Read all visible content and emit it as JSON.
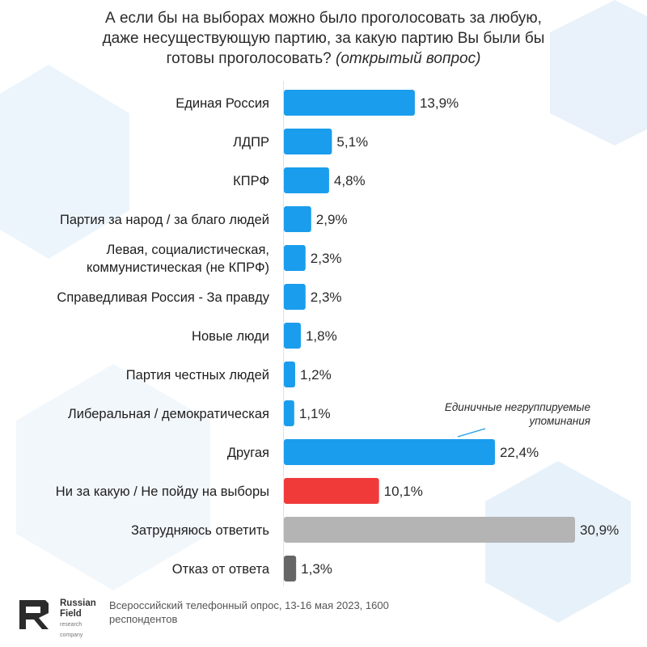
{
  "title": {
    "line1": "А если бы на выборах можно было проголосовать за любую,",
    "line2": "даже несуществующую партию, за какую партию Вы были бы",
    "line3_main": "готовы проголосовать?",
    "line3_italic": "(открытый вопрос)"
  },
  "annotation": {
    "line1": "Единичные негруппируемые",
    "line2": "упоминания"
  },
  "footer": {
    "logo_line1": "Russian",
    "logo_line2": "Field",
    "logo_line3": "research company",
    "note": "Всероссийский телефонный опрос, 13-16 мая 2023, 1600 респондентов"
  },
  "colors": {
    "primary_bar": "#1a9ded",
    "red_bar": "#f03a3a",
    "gray_bar": "#b4b4b4",
    "dark_bar": "#666666",
    "background_shapes": "#e7f1fa"
  },
  "chart_data": {
    "type": "bar",
    "orientation": "horizontal",
    "categories": [
      "Единая Россия",
      "ЛДПР",
      "КПРФ",
      "Партия за народ / за благо людей",
      "Левая, социалистическая, коммунистическая (не КПРФ)",
      "Справедливая Россия - За правду",
      "Новые люди",
      "Партия честных людей",
      "Либеральная / демократическая",
      "Другая",
      "Ни за какую / Не пойду на выборы",
      "Затрудняюсь ответить",
      "Отказ от ответа"
    ],
    "values": [
      13.9,
      5.1,
      4.8,
      2.9,
      2.3,
      2.3,
      1.8,
      1.2,
      1.1,
      22.4,
      10.1,
      30.9,
      1.3
    ],
    "value_labels": [
      "13,9%",
      "5,1%",
      "4,8%",
      "2,9%",
      "2,3%",
      "2,3%",
      "1,8%",
      "1,2%",
      "1,1%",
      "22,4%",
      "10,1%",
      "30,9%",
      "1,3%"
    ],
    "bar_colors": [
      "primary",
      "primary",
      "primary",
      "primary",
      "primary",
      "primary",
      "primary",
      "primary",
      "primary",
      "primary",
      "red",
      "gray",
      "dark"
    ],
    "xlim": [
      0,
      30.9
    ],
    "xlabel": "",
    "ylabel": "",
    "grid": false,
    "legend": "none"
  }
}
